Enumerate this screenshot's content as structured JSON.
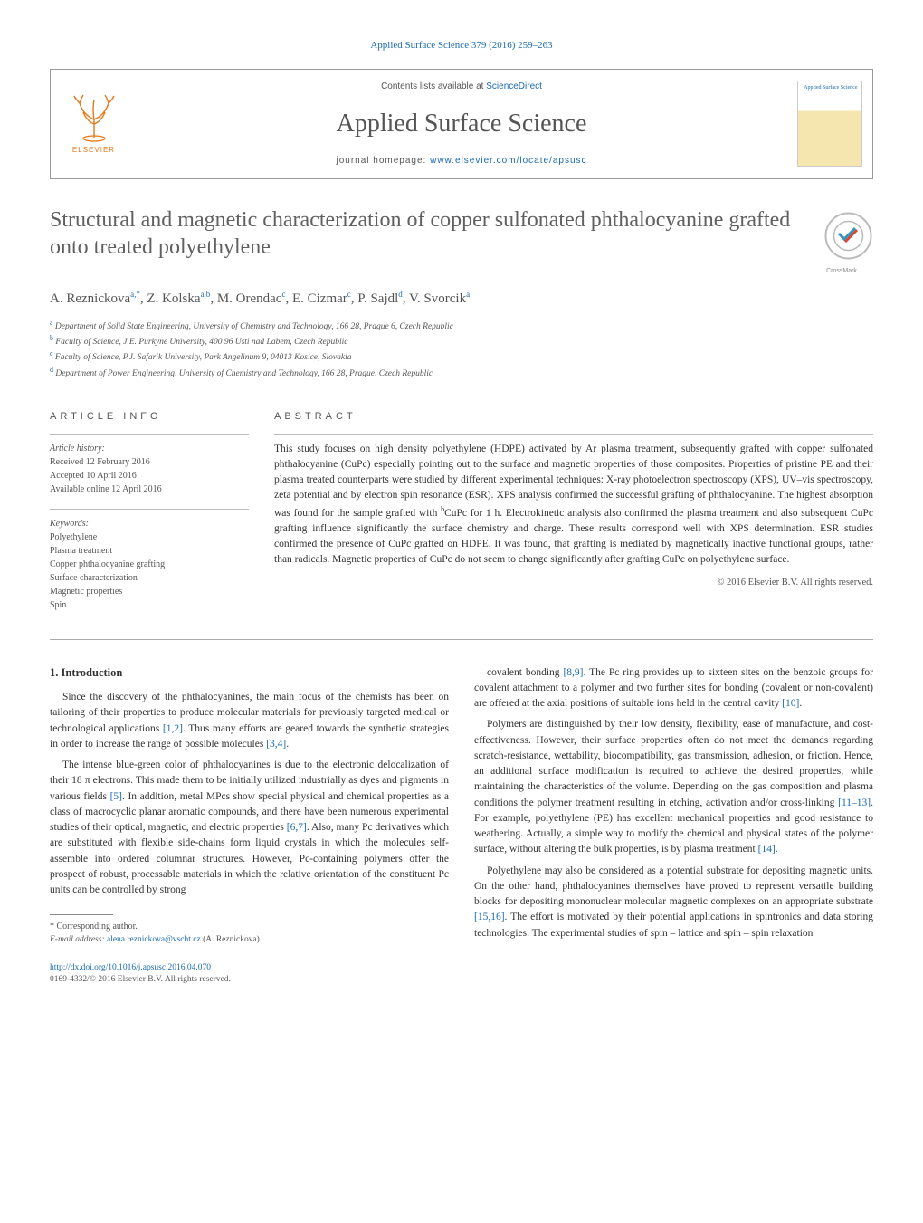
{
  "top_citation_link": "Applied Surface Science 379 (2016) 259–263",
  "header": {
    "contents_prefix": "Contents lists available at ",
    "contents_link_text": "ScienceDirect",
    "journal_name": "Applied Surface Science",
    "homepage_prefix": "journal homepage: ",
    "homepage_link_text": "www.elsevier.com/locate/apsusc",
    "publisher_name": "ELSEVIER",
    "thumb_label": "Applied\nSurface Science"
  },
  "crossmark_label": "CrossMark",
  "title": "Structural and magnetic characterization of copper sulfonated phthalocyanine grafted onto treated polyethylene",
  "authors_html": "A. Reznickova<sup>a,*</sup>, Z. Kolska<sup>a,b</sup>, M. Orendac<sup>c</sup>, E. Cizmar<sup>c</sup>, P. Sajdl<sup>d</sup>, V. Svorcik<sup>a</sup>",
  "affiliations": [
    {
      "sup": "a",
      "text": "Department of Solid State Engineering, University of Chemistry and Technology, 166 28, Prague 6, Czech Republic"
    },
    {
      "sup": "b",
      "text": "Faculty of Science, J.E. Purkyne University, 400 96 Usti nad Labem, Czech Republic"
    },
    {
      "sup": "c",
      "text": "Faculty of Science, P.J. Safarik University, Park Angelinum 9, 04013 Kosice, Slovakia"
    },
    {
      "sup": "d",
      "text": "Department of Power Engineering, University of Chemistry and Technology, 166 28, Prague, Czech Republic"
    }
  ],
  "article_info": {
    "label": "ARTICLE INFO",
    "history_label": "Article history:",
    "history": [
      "Received 12 February 2016",
      "Accepted 10 April 2016",
      "Available online 12 April 2016"
    ],
    "keywords_label": "Keywords:",
    "keywords": [
      "Polyethylene",
      "Plasma treatment",
      "Copper phthalocyanine grafting",
      "Surface characterization",
      "Magnetic properties",
      "Spin"
    ]
  },
  "abstract": {
    "label": "ABSTRACT",
    "text": "This study focuses on high density polyethylene (HDPE) activated by Ar plasma treatment, subsequently grafted with copper sulfonated phthalocyanine (CuPc) especially pointing out to the surface and magnetic properties of those composites. Properties of pristine PE and their plasma treated counterparts were studied by different experimental techniques: X-ray photoelectron spectroscopy (XPS), UV–vis spectroscopy, zeta potential and by electron spin resonance (ESR). XPS analysis confirmed the successful grafting of phthalocyanine. The highest absorption was found for the sample grafted with bCuPc for 1 h. Electrokinetic analysis also confirmed the plasma treatment and also subsequent CuPc grafting influence significantly the surface chemistry and charge. These results correspond well with XPS determination. ESR studies confirmed the presence of CuPc grafted on HDPE. It was found, that grafting is mediated by magnetically inactive functional groups, rather than radicals. Magnetic properties of CuPc do not seem to change significantly after grafting CuPc on polyethylene surface.",
    "copyright": "© 2016 Elsevier B.V. All rights reserved."
  },
  "body": {
    "heading": "1. Introduction",
    "left_paras": [
      "Since the discovery of the phthalocyanines, the main focus of the chemists has been on tailoring of their properties to produce molecular materials for previously targeted medical or technological applications [1,2]. Thus many efforts are geared towards the synthetic strategies in order to increase the range of possible molecules [3,4].",
      "The intense blue-green color of phthalocyanines is due to the electronic delocalization of their 18 π electrons. This made them to be initially utilized industrially as dyes and pigments in various fields [5]. In addition, metal MPcs show special physical and chemical properties as a class of macrocyclic planar aromatic compounds, and there have been numerous experimental studies of their optical, magnetic, and electric properties [6,7]. Also, many Pc derivatives which are substituted with flexible side-chains form liquid crystals in which the molecules self-assemble into ordered columnar structures. However, Pc-containing polymers offer the prospect of robust, processable materials in which the relative orientation of the constituent Pc units can be controlled by strong"
    ],
    "right_paras": [
      "covalent bonding [8,9]. The Pc ring provides up to sixteen sites on the benzoic groups for covalent attachment to a polymer and two further sites for bonding (covalent or non-covalent) are offered at the axial positions of suitable ions held in the central cavity [10].",
      "Polymers are distinguished by their low density, flexibility, ease of manufacture, and cost-effectiveness. However, their surface properties often do not meet the demands regarding scratch-resistance, wettability, biocompatibility, gas transmission, adhesion, or friction. Hence, an additional surface modification is required to achieve the desired properties, while maintaining the characteristics of the volume. Depending on the gas composition and plasma conditions the polymer treatment resulting in etching, activation and/or cross-linking [11–13]. For example, polyethylene (PE) has excellent mechanical properties and good resistance to weathering. Actually, a simple way to modify the chemical and physical states of the polymer surface, without altering the bulk properties, is by plasma treatment [14].",
      "Polyethylene may also be considered as a potential substrate for depositing magnetic units. On the other hand, phthalocyanines themselves have proved to represent versatile building blocks for depositing mononuclear molecular magnetic complexes on an appropriate substrate [15,16]. The effort is motivated by their potential applications in spintronics and data storing technologies. The experimental studies of spin – lattice and spin – spin relaxation"
    ]
  },
  "footnote": {
    "corr_label": "* Corresponding author.",
    "email_label": "E-mail address: ",
    "email": "alena.reznickova@vscht.cz",
    "email_suffix": " (A. Reznickova)."
  },
  "doi": {
    "link": "http://dx.doi.org/10.1016/j.apsusc.2016.04.070",
    "issn_line": "0169-4332/© 2016 Elsevier B.V. All rights reserved."
  },
  "colors": {
    "link": "#1a6bb0",
    "text_muted": "#555555",
    "border": "#999999",
    "elsevier_orange": "#e67817"
  }
}
